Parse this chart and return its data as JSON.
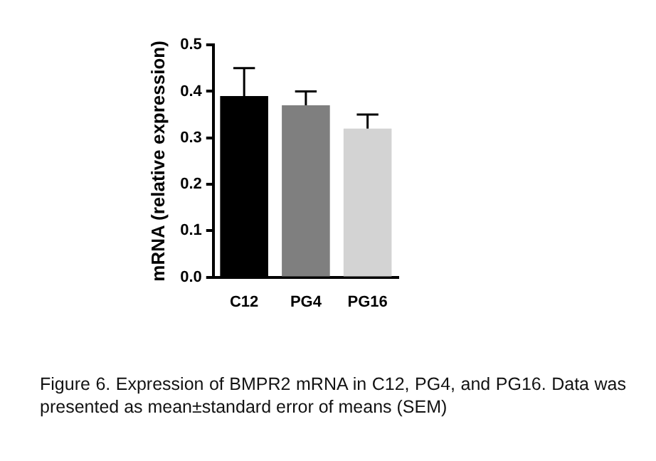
{
  "chart_data": {
    "type": "bar",
    "ylabel": "mRNA (relative expression)",
    "categories": [
      "C12",
      "PG4",
      "PG16"
    ],
    "values": [
      0.39,
      0.37,
      0.32
    ],
    "colors": [
      "#000000",
      "#7f7f7f",
      "#d3d3d3"
    ],
    "errors": [
      [
        0.39,
        0.45
      ],
      [
        0.37,
        0.4
      ],
      [
        0.32,
        0.35
      ]
    ],
    "ylim": [
      0,
      0.5
    ],
    "yticks": [
      {
        "value": 0,
        "label": "0.0"
      },
      0.1,
      0.2,
      0.3,
      0.4,
      0.5
    ],
    "grid": false,
    "legend": false,
    "annotations": [
      "Figure 6. Expression of BMPR2 mRNA in C12, PG4, and PG16. Data was presented as mean±standard error of means (SEM)"
    ]
  }
}
